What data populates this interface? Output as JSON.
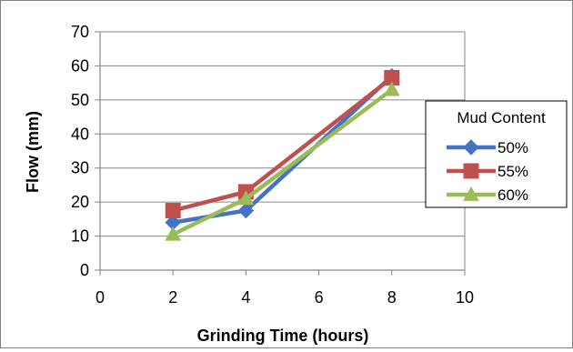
{
  "chart_data": {
    "type": "line",
    "xlabel": "Grinding Time (hours)",
    "ylabel": "Flow (mm)",
    "xlim": [
      0,
      10
    ],
    "ylim": [
      0,
      70
    ],
    "xticks": [
      0,
      2,
      4,
      6,
      8,
      10
    ],
    "yticks": [
      0,
      10,
      20,
      30,
      40,
      50,
      60,
      70
    ],
    "grid": "horizontal",
    "legend": {
      "title": "Mud Content",
      "placement": "right"
    },
    "x": [
      2,
      4,
      8
    ],
    "series": [
      {
        "name": "50%",
        "values": [
          14,
          17.5,
          57
        ],
        "color": "#4472C4",
        "marker": "diamond"
      },
      {
        "name": "55%",
        "values": [
          17.5,
          23,
          56.5
        ],
        "color": "#C0504D",
        "marker": "square"
      },
      {
        "name": "60%",
        "values": [
          10.5,
          21,
          53
        ],
        "color": "#9BBB59",
        "marker": "triangle"
      }
    ]
  }
}
